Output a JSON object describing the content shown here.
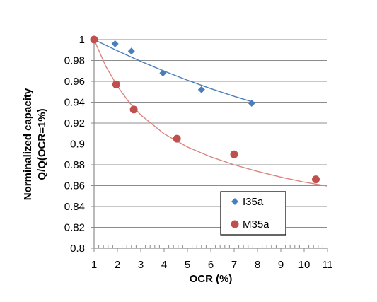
{
  "chart_data": {
    "type": "scatter",
    "xlabel": "OCR (%)",
    "ylabel_line1": "Norminalized capacity",
    "ylabel_line2": "Q/Q(OCR=1%)",
    "xlim": [
      1,
      11
    ],
    "ylim": [
      0.8,
      1.0
    ],
    "x_ticks": [
      1,
      2,
      3,
      4,
      5,
      6,
      7,
      8,
      9,
      10,
      11
    ],
    "x_tick_labels": [
      "1",
      "2",
      "3",
      "4",
      "5",
      "6",
      "7",
      "8",
      "9",
      "10",
      "11"
    ],
    "y_ticks": [
      0.8,
      0.82,
      0.84,
      0.86,
      0.88,
      0.9,
      0.92,
      0.94,
      0.96,
      0.98,
      1.0
    ],
    "y_tick_labels": [
      "0.8",
      "0.82",
      "0.84",
      "0.86",
      "0.88",
      "0.9",
      "0.92",
      "0.94",
      "0.96",
      "0.98",
      "1"
    ],
    "grid": "horizontal",
    "legend_position": "bottom-right",
    "series": [
      {
        "name": "I35a",
        "marker": "diamond",
        "color": "#4a7ebb",
        "trend_color": "#4a7ebb",
        "x": [
          1,
          1.9,
          2.6,
          3.95,
          5.6,
          7.75
        ],
        "y": [
          1.0,
          0.996,
          0.989,
          0.968,
          0.952,
          0.939
        ],
        "trend": {
          "x": [
            1,
            2,
            3,
            4,
            5,
            6,
            7,
            7.9
          ],
          "y": [
            1.0,
            0.9893,
            0.9792,
            0.9698,
            0.9611,
            0.953,
            0.9456,
            0.9395
          ]
        }
      },
      {
        "name": "M35a",
        "marker": "circle",
        "color": "#c0504d",
        "trend_color": "#d9857f",
        "x": [
          1,
          1.95,
          2.7,
          4.55,
          7.0,
          10.5
        ],
        "y": [
          1.0,
          0.957,
          0.933,
          0.905,
          0.89,
          0.866
        ],
        "trend": {
          "x": [
            1,
            1.5,
            2,
            2.5,
            3,
            4,
            5,
            6,
            7,
            8,
            9,
            10,
            11
          ],
          "y": [
            1.0,
            0.9745,
            0.9553,
            0.94,
            0.9278,
            0.9097,
            0.897,
            0.8875,
            0.88,
            0.8737,
            0.8682,
            0.8634,
            0.8595
          ]
        }
      }
    ]
  }
}
